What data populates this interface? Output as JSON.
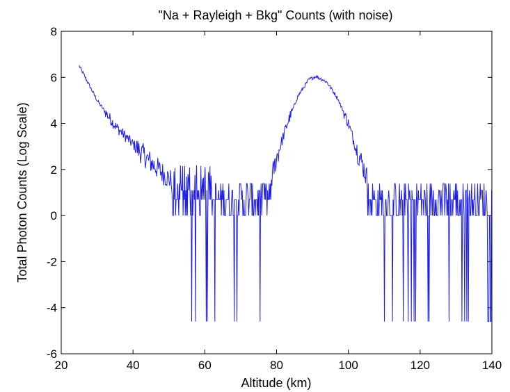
{
  "chart_data": {
    "type": "line",
    "title": "\"Na + Rayleigh + Bkg\" Counts (with noise)",
    "xlabel": "Altitude (km)",
    "ylabel": "Total Photon Counts (Log Scale)",
    "xlim": [
      20,
      140
    ],
    "ylim": [
      -6,
      8
    ],
    "xticks": [
      "20",
      "40",
      "60",
      "80",
      "100",
      "120",
      "140"
    ],
    "yticks": [
      "-6",
      "-4",
      "-2",
      "0",
      "2",
      "4",
      "6",
      "8"
    ],
    "grid": false,
    "line_color": "#1f1fe6",
    "series": [
      {
        "name": "",
        "x_start": 25,
        "x_end": 140,
        "x_step": 0.15,
        "floor_value": -4.6,
        "envelope": [
          {
            "x": 25,
            "y": 6.5
          },
          {
            "x": 30,
            "y": 5.0
          },
          {
            "x": 35,
            "y": 3.9
          },
          {
            "x": 40,
            "y": 3.1
          },
          {
            "x": 45,
            "y": 2.3
          },
          {
            "x": 50,
            "y": 1.6
          },
          {
            "x": 55,
            "y": 1.0
          },
          {
            "x": 60,
            "y": 0.7
          },
          {
            "x": 70,
            "y": 0.6
          },
          {
            "x": 75,
            "y": 0.6
          },
          {
            "x": 78,
            "y": 1.2
          },
          {
            "x": 80,
            "y": 2.5
          },
          {
            "x": 83,
            "y": 4.0
          },
          {
            "x": 86,
            "y": 5.2
          },
          {
            "x": 89,
            "y": 5.9
          },
          {
            "x": 91,
            "y": 6.05
          },
          {
            "x": 94,
            "y": 5.8
          },
          {
            "x": 97,
            "y": 5.1
          },
          {
            "x": 100,
            "y": 4.0
          },
          {
            "x": 102,
            "y": 3.0
          },
          {
            "x": 104,
            "y": 2.2
          },
          {
            "x": 106,
            "y": 1.2
          },
          {
            "x": 108,
            "y": 0.6
          },
          {
            "x": 140,
            "y": 0.6
          }
        ]
      }
    ]
  }
}
